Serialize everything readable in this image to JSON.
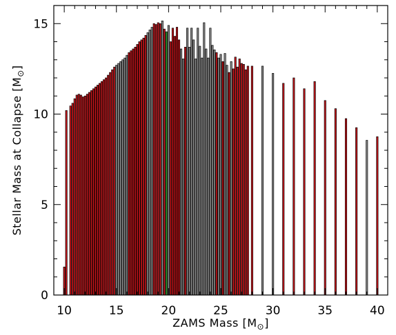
{
  "chart_data": {
    "type": "bar",
    "title": "",
    "xlabel": "ZAMS Mass [M",
    "xlabel_suffix": "]",
    "ylabel": "Stellar Mass at Collapse [M",
    "ylabel_suffix": "]",
    "xlim": [
      9,
      41
    ],
    "ylim": [
      0,
      16
    ],
    "xticks": [
      "10",
      "15",
      "20",
      "25",
      "30",
      "35",
      "40"
    ],
    "xtick_values": [
      10,
      15,
      20,
      25,
      30,
      35,
      40
    ],
    "yticks": [
      "0",
      "5",
      "10",
      "15"
    ],
    "ytick_values": [
      0,
      5,
      10,
      15
    ],
    "grid": false,
    "colors": {
      "red": "#c8141a",
      "grey": "#8c8c8c",
      "green": "#2e9b2e",
      "outline": "#000000"
    },
    "series": [
      {
        "x": 10.0,
        "y": 1.55,
        "color": "red"
      },
      {
        "x": 10.2,
        "y": 10.2,
        "color": "red"
      },
      {
        "x": 10.6,
        "y": 10.45,
        "color": "red"
      },
      {
        "x": 10.8,
        "y": 10.6,
        "color": "red"
      },
      {
        "x": 11.0,
        "y": 10.85,
        "color": "red"
      },
      {
        "x": 11.2,
        "y": 11.05,
        "color": "red"
      },
      {
        "x": 11.4,
        "y": 11.1,
        "color": "red"
      },
      {
        "x": 11.6,
        "y": 11.05,
        "color": "red"
      },
      {
        "x": 11.8,
        "y": 10.95,
        "color": "red"
      },
      {
        "x": 12.0,
        "y": 11.0,
        "color": "red"
      },
      {
        "x": 12.2,
        "y": 11.1,
        "color": "red"
      },
      {
        "x": 12.4,
        "y": 11.2,
        "color": "red"
      },
      {
        "x": 12.6,
        "y": 11.3,
        "color": "red"
      },
      {
        "x": 12.8,
        "y": 11.4,
        "color": "red"
      },
      {
        "x": 13.0,
        "y": 11.5,
        "color": "red"
      },
      {
        "x": 13.2,
        "y": 11.6,
        "color": "red"
      },
      {
        "x": 13.4,
        "y": 11.7,
        "color": "red"
      },
      {
        "x": 13.6,
        "y": 11.8,
        "color": "red"
      },
      {
        "x": 13.8,
        "y": 11.9,
        "color": "red"
      },
      {
        "x": 14.0,
        "y": 12.0,
        "color": "red"
      },
      {
        "x": 14.2,
        "y": 12.15,
        "color": "red"
      },
      {
        "x": 14.4,
        "y": 12.3,
        "color": "red"
      },
      {
        "x": 14.6,
        "y": 12.45,
        "color": "red"
      },
      {
        "x": 14.8,
        "y": 12.6,
        "color": "red"
      },
      {
        "x": 15.0,
        "y": 12.7,
        "color": "grey"
      },
      {
        "x": 15.2,
        "y": 12.8,
        "color": "grey"
      },
      {
        "x": 15.4,
        "y": 12.9,
        "color": "grey"
      },
      {
        "x": 15.6,
        "y": 13.0,
        "color": "grey"
      },
      {
        "x": 15.8,
        "y": 13.1,
        "color": "grey"
      },
      {
        "x": 16.0,
        "y": 13.25,
        "color": "grey"
      },
      {
        "x": 16.2,
        "y": 13.4,
        "color": "red"
      },
      {
        "x": 16.4,
        "y": 13.5,
        "color": "red"
      },
      {
        "x": 16.6,
        "y": 13.6,
        "color": "red"
      },
      {
        "x": 16.8,
        "y": 13.7,
        "color": "red"
      },
      {
        "x": 17.0,
        "y": 13.85,
        "color": "red"
      },
      {
        "x": 17.2,
        "y": 14.0,
        "color": "red"
      },
      {
        "x": 17.4,
        "y": 14.1,
        "color": "red"
      },
      {
        "x": 17.6,
        "y": 14.2,
        "color": "red"
      },
      {
        "x": 17.8,
        "y": 14.35,
        "color": "red"
      },
      {
        "x": 18.0,
        "y": 14.5,
        "color": "grey"
      },
      {
        "x": 18.2,
        "y": 14.65,
        "color": "grey"
      },
      {
        "x": 18.4,
        "y": 14.8,
        "color": "grey"
      },
      {
        "x": 18.6,
        "y": 15.0,
        "color": "red"
      },
      {
        "x": 18.8,
        "y": 14.95,
        "color": "red"
      },
      {
        "x": 19.0,
        "y": 15.05,
        "color": "red"
      },
      {
        "x": 19.2,
        "y": 15.0,
        "color": "red"
      },
      {
        "x": 19.4,
        "y": 15.15,
        "color": "grey"
      },
      {
        "x": 19.6,
        "y": 14.7,
        "color": "red"
      },
      {
        "x": 19.8,
        "y": 14.55,
        "color": "green"
      },
      {
        "x": 20.0,
        "y": 14.9,
        "color": "grey"
      },
      {
        "x": 20.2,
        "y": 14.0,
        "color": "red"
      },
      {
        "x": 20.4,
        "y": 14.75,
        "color": "red"
      },
      {
        "x": 20.6,
        "y": 14.3,
        "color": "red"
      },
      {
        "x": 20.8,
        "y": 14.8,
        "color": "red"
      },
      {
        "x": 21.0,
        "y": 14.1,
        "color": "red"
      },
      {
        "x": 21.2,
        "y": 13.6,
        "color": "grey"
      },
      {
        "x": 21.4,
        "y": 13.05,
        "color": "grey"
      },
      {
        "x": 21.6,
        "y": 13.7,
        "color": "red"
      },
      {
        "x": 21.8,
        "y": 14.75,
        "color": "grey"
      },
      {
        "x": 22.0,
        "y": 13.7,
        "color": "grey"
      },
      {
        "x": 22.2,
        "y": 14.75,
        "color": "grey"
      },
      {
        "x": 22.4,
        "y": 14.1,
        "color": "grey"
      },
      {
        "x": 22.6,
        "y": 13.05,
        "color": "grey"
      },
      {
        "x": 22.8,
        "y": 14.75,
        "color": "grey"
      },
      {
        "x": 23.0,
        "y": 13.75,
        "color": "grey"
      },
      {
        "x": 23.2,
        "y": 13.1,
        "color": "grey"
      },
      {
        "x": 23.4,
        "y": 15.05,
        "color": "grey"
      },
      {
        "x": 23.6,
        "y": 13.6,
        "color": "grey"
      },
      {
        "x": 23.8,
        "y": 13.1,
        "color": "grey"
      },
      {
        "x": 24.0,
        "y": 14.75,
        "color": "grey"
      },
      {
        "x": 24.2,
        "y": 13.8,
        "color": "grey"
      },
      {
        "x": 24.4,
        "y": 13.55,
        "color": "grey"
      },
      {
        "x": 24.6,
        "y": 13.4,
        "color": "red"
      },
      {
        "x": 24.8,
        "y": 13.1,
        "color": "grey"
      },
      {
        "x": 25.0,
        "y": 13.3,
        "color": "grey"
      },
      {
        "x": 25.2,
        "y": 12.9,
        "color": "red"
      },
      {
        "x": 25.4,
        "y": 13.35,
        "color": "grey"
      },
      {
        "x": 25.6,
        "y": 12.7,
        "color": "grey"
      },
      {
        "x": 25.8,
        "y": 12.3,
        "color": "red"
      },
      {
        "x": 26.0,
        "y": 12.9,
        "color": "grey"
      },
      {
        "x": 26.2,
        "y": 12.5,
        "color": "red"
      },
      {
        "x": 26.4,
        "y": 13.15,
        "color": "red"
      },
      {
        "x": 26.6,
        "y": 12.6,
        "color": "red"
      },
      {
        "x": 26.8,
        "y": 13.05,
        "color": "red"
      },
      {
        "x": 27.0,
        "y": 12.8,
        "color": "red"
      },
      {
        "x": 27.2,
        "y": 12.75,
        "color": "red"
      },
      {
        "x": 27.4,
        "y": 12.45,
        "color": "red"
      },
      {
        "x": 27.6,
        "y": 12.65,
        "color": "red"
      },
      {
        "x": 28.0,
        "y": 12.65,
        "color": "red"
      },
      {
        "x": 29.0,
        "y": 12.65,
        "color": "grey"
      },
      {
        "x": 30.0,
        "y": 12.25,
        "color": "grey"
      },
      {
        "x": 31.0,
        "y": 11.7,
        "color": "red"
      },
      {
        "x": 32.0,
        "y": 12.0,
        "color": "red"
      },
      {
        "x": 33.0,
        "y": 11.4,
        "color": "red"
      },
      {
        "x": 34.0,
        "y": 11.8,
        "color": "red"
      },
      {
        "x": 35.0,
        "y": 10.75,
        "color": "red"
      },
      {
        "x": 36.0,
        "y": 10.3,
        "color": "red"
      },
      {
        "x": 37.0,
        "y": 9.75,
        "color": "red"
      },
      {
        "x": 38.0,
        "y": 9.25,
        "color": "red"
      },
      {
        "x": 39.0,
        "y": 8.55,
        "color": "grey"
      },
      {
        "x": 40.0,
        "y": 8.75,
        "color": "red"
      }
    ]
  }
}
